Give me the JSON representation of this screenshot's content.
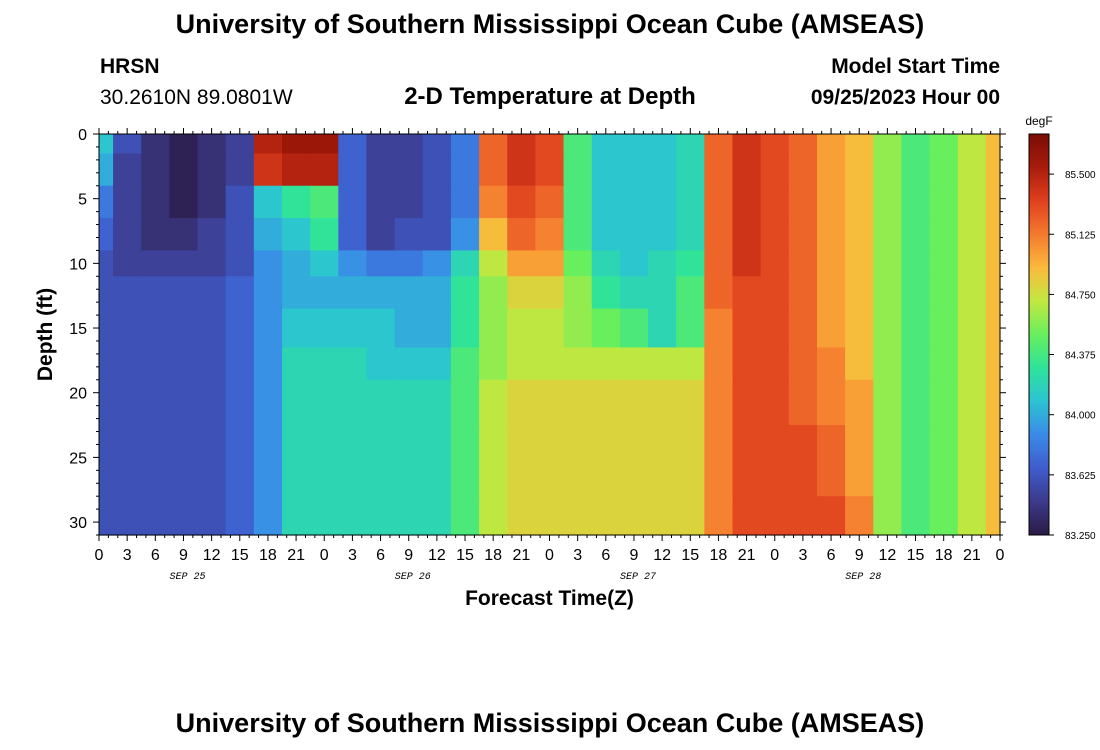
{
  "page": {
    "title": "University of Southern Mississippi Ocean Cube (AMSEAS)",
    "footer_title": "University of Southern Mississippi Ocean Cube (AMSEAS)",
    "station": "HRSN",
    "coords": "30.2610N  89.0801W",
    "subtitle": "2-D Temperature at Depth",
    "start_label": "Model Start Time",
    "start_value": "09/25/2023 Hour 00"
  },
  "chart_data": {
    "type": "heatmap",
    "title": "2-D Temperature at Depth",
    "xlabel": "Forecast Time(Z)",
    "ylabel": "Depth (ft)",
    "x_range_hours": [
      0,
      96
    ],
    "x_tick_labels": [
      "0",
      "3",
      "6",
      "9",
      "12",
      "15",
      "18",
      "21",
      "0",
      "3",
      "6",
      "9",
      "12",
      "15",
      "18",
      "21",
      "0",
      "3",
      "6",
      "9",
      "12",
      "15",
      "18",
      "21",
      "0",
      "3",
      "6",
      "9",
      "12",
      "15",
      "18",
      "21",
      "0"
    ],
    "date_labels": [
      {
        "label": "SEP 25",
        "hour": 9
      },
      {
        "label": "SEP 26",
        "hour": 33
      },
      {
        "label": "SEP 27",
        "hour": 57
      },
      {
        "label": "SEP 28",
        "hour": 81
      }
    ],
    "y_range": [
      0,
      31
    ],
    "y_ticks": [
      0,
      5,
      10,
      15,
      20,
      25,
      30
    ],
    "y_inverted": true,
    "colorbar": {
      "unit": "degF",
      "min": 83.25,
      "max": 85.75,
      "tick_values": [
        85.5,
        85.125,
        84.75,
        84.375,
        84.0,
        83.625,
        83.25
      ],
      "tick_labels": [
        "85.500",
        "85.125",
        "84.750",
        "84.375",
        "84.000",
        "83.625",
        "83.250"
      ]
    },
    "color_scale": [
      "#2a1a44",
      "#3c3a8a",
      "#3f5ccc",
      "#3b8ae8",
      "#2cc3d2",
      "#2ee39a",
      "#67ef5d",
      "#c2e840",
      "#fbb93c",
      "#f47a2e",
      "#e0401e",
      "#a81c0b",
      "#7a0c04"
    ],
    "grid_hours": [
      0,
      3,
      6,
      9,
      12,
      15,
      18,
      21,
      24,
      27,
      30,
      33,
      36,
      39,
      42,
      45,
      48,
      51,
      54,
      57,
      60,
      63,
      66,
      69,
      72,
      75,
      78,
      81,
      84,
      87,
      90,
      93,
      96
    ],
    "grid_depths": [
      0,
      3,
      5,
      8,
      10,
      12,
      15,
      18,
      20,
      25,
      31
    ],
    "values": [
      [
        84.1,
        83.6,
        83.4,
        83.3,
        83.4,
        83.5,
        85.5,
        85.6,
        85.6,
        83.7,
        83.5,
        83.5,
        83.6,
        83.8,
        85.2,
        85.4,
        85.3,
        84.4,
        84.1,
        84.1,
        84.1,
        84.2,
        85.2,
        85.4,
        85.3,
        85.2,
        85.0,
        84.9,
        84.6,
        84.4,
        84.5,
        84.7,
        84.9
      ],
      [
        84.0,
        83.5,
        83.4,
        83.3,
        83.4,
        83.5,
        85.4,
        85.5,
        85.5,
        83.7,
        83.5,
        83.5,
        83.6,
        83.8,
        85.2,
        85.4,
        85.3,
        84.4,
        84.1,
        84.1,
        84.1,
        84.2,
        85.2,
        85.4,
        85.3,
        85.2,
        85.0,
        84.9,
        84.6,
        84.4,
        84.5,
        84.7,
        84.9
      ],
      [
        83.8,
        83.5,
        83.4,
        83.3,
        83.4,
        83.6,
        84.1,
        84.3,
        84.4,
        83.7,
        83.5,
        83.5,
        83.6,
        83.8,
        85.1,
        85.3,
        85.2,
        84.4,
        84.1,
        84.1,
        84.1,
        84.2,
        85.2,
        85.4,
        85.3,
        85.2,
        85.0,
        84.9,
        84.6,
        84.4,
        84.5,
        84.7,
        84.9
      ],
      [
        83.7,
        83.5,
        83.4,
        83.4,
        83.5,
        83.6,
        84.0,
        84.1,
        84.3,
        83.7,
        83.5,
        83.6,
        83.6,
        83.9,
        84.9,
        85.2,
        85.1,
        84.4,
        84.1,
        84.1,
        84.1,
        84.2,
        85.2,
        85.4,
        85.3,
        85.2,
        85.0,
        84.9,
        84.6,
        84.4,
        84.5,
        84.7,
        84.9
      ],
      [
        83.6,
        83.5,
        83.5,
        83.5,
        83.5,
        83.6,
        83.9,
        84.0,
        84.1,
        83.9,
        83.8,
        83.8,
        83.9,
        84.2,
        84.7,
        85.0,
        85.0,
        84.5,
        84.2,
        84.1,
        84.2,
        84.3,
        85.2,
        85.4,
        85.3,
        85.2,
        85.0,
        84.9,
        84.6,
        84.4,
        84.5,
        84.7,
        84.9
      ],
      [
        83.6,
        83.6,
        83.6,
        83.6,
        83.6,
        83.7,
        83.9,
        84.0,
        84.0,
        84.0,
        84.0,
        84.0,
        84.0,
        84.3,
        84.6,
        84.8,
        84.8,
        84.6,
        84.3,
        84.2,
        84.2,
        84.4,
        85.2,
        85.3,
        85.3,
        85.2,
        85.0,
        84.9,
        84.6,
        84.4,
        84.5,
        84.7,
        84.9
      ],
      [
        83.6,
        83.6,
        83.6,
        83.6,
        83.6,
        83.7,
        83.9,
        84.1,
        84.1,
        84.1,
        84.1,
        84.0,
        84.0,
        84.3,
        84.6,
        84.7,
        84.7,
        84.6,
        84.5,
        84.4,
        84.2,
        84.4,
        85.1,
        85.3,
        85.3,
        85.2,
        85.0,
        84.9,
        84.6,
        84.4,
        84.5,
        84.7,
        84.9
      ],
      [
        83.6,
        83.6,
        83.6,
        83.6,
        83.6,
        83.7,
        83.9,
        84.2,
        84.2,
        84.2,
        84.1,
        84.1,
        84.1,
        84.4,
        84.6,
        84.7,
        84.7,
        84.7,
        84.7,
        84.7,
        84.7,
        84.7,
        85.1,
        85.3,
        85.3,
        85.2,
        85.1,
        84.9,
        84.6,
        84.4,
        84.5,
        84.7,
        84.9
      ],
      [
        83.6,
        83.6,
        83.6,
        83.6,
        83.6,
        83.7,
        83.9,
        84.2,
        84.2,
        84.2,
        84.2,
        84.2,
        84.2,
        84.4,
        84.7,
        84.8,
        84.8,
        84.8,
        84.8,
        84.8,
        84.8,
        84.8,
        85.1,
        85.3,
        85.3,
        85.2,
        85.1,
        85.0,
        84.6,
        84.4,
        84.5,
        84.7,
        84.9
      ],
      [
        83.6,
        83.6,
        83.6,
        83.6,
        83.6,
        83.7,
        83.9,
        84.2,
        84.2,
        84.2,
        84.2,
        84.2,
        84.2,
        84.4,
        84.7,
        84.8,
        84.8,
        84.8,
        84.8,
        84.8,
        84.8,
        84.8,
        85.1,
        85.3,
        85.3,
        85.3,
        85.2,
        85.0,
        84.6,
        84.4,
        84.5,
        84.7,
        84.9
      ],
      [
        83.6,
        83.6,
        83.6,
        83.6,
        83.6,
        83.7,
        83.9,
        84.2,
        84.2,
        84.2,
        84.2,
        84.2,
        84.2,
        84.4,
        84.7,
        84.8,
        84.8,
        84.8,
        84.8,
        84.8,
        84.8,
        84.8,
        85.1,
        85.3,
        85.3,
        85.3,
        85.3,
        85.1,
        84.6,
        84.4,
        84.5,
        84.7,
        84.9
      ]
    ]
  }
}
